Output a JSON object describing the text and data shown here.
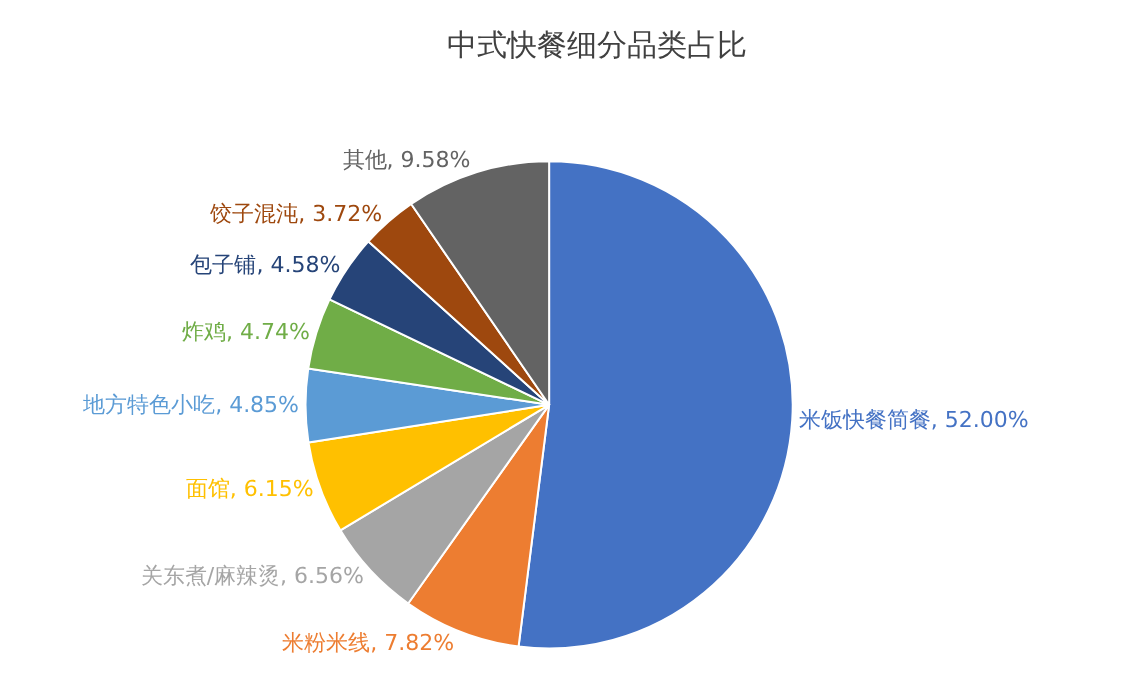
{
  "chart_data": {
    "type": "pie",
    "title": "中式快餐细分品类占比",
    "categories": [
      "米饭快餐简餐",
      "米粉米线",
      "关东煮/麻辣烫",
      "面馆",
      "地方特色小吃",
      "炸鸡",
      "包子铺",
      "饺子混沌",
      "其他"
    ],
    "values": [
      52.0,
      7.82,
      6.56,
      6.15,
      4.85,
      4.74,
      4.58,
      3.72,
      9.58
    ],
    "value_labels": [
      "52.00%",
      "7.82%",
      "6.56%",
      "6.15%",
      "4.85%",
      "4.74%",
      "4.58%",
      "3.72%",
      "9.58%"
    ],
    "colors": [
      "#4472c4",
      "#ed7d31",
      "#a5a5a5",
      "#ffc000",
      "#5b9bd5",
      "#70ad47",
      "#264478",
      "#9e480e",
      "#636363"
    ],
    "legend": false
  }
}
